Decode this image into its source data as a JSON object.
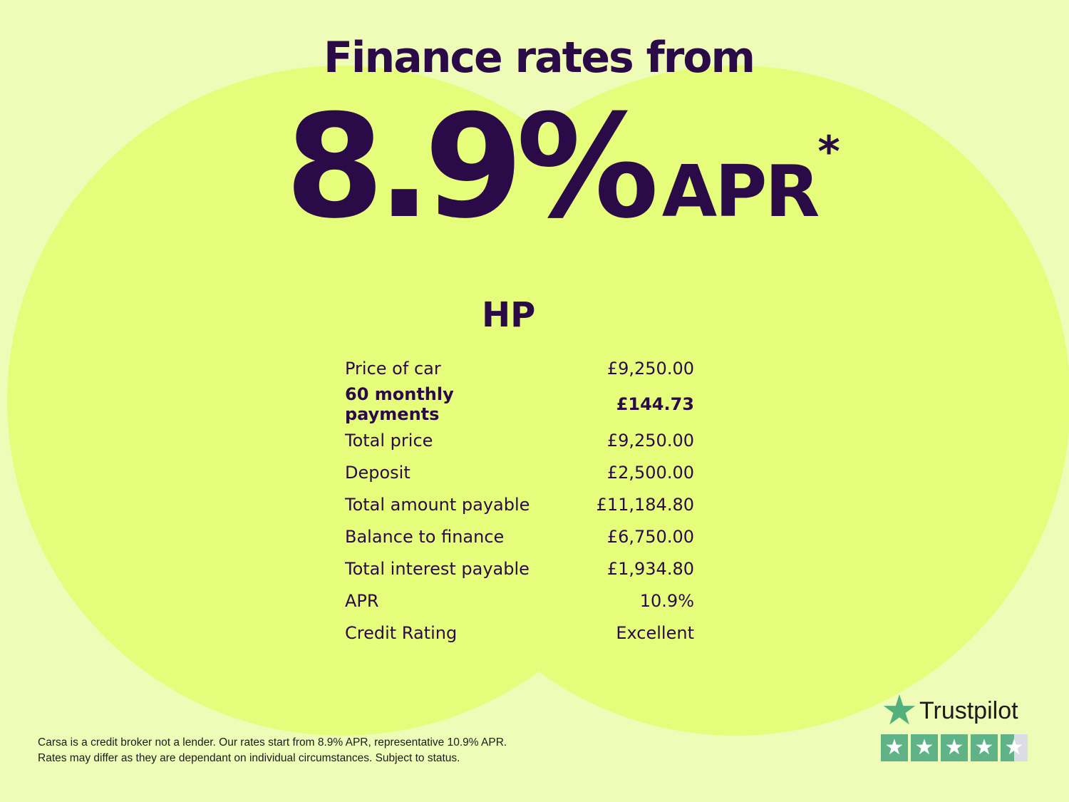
{
  "headline": {
    "title": "Finance rates from",
    "rate": "8.9%",
    "apr": "APR",
    "asterisk": "*"
  },
  "table": {
    "heading": "HP",
    "rows": [
      {
        "label": "Price of car",
        "value": "£9,250.00",
        "bold": false
      },
      {
        "label": "60 monthly payments",
        "value": "£144.73",
        "bold": true
      },
      {
        "label": "Total price",
        "value": "£9,250.00",
        "bold": false
      },
      {
        "label": "Deposit",
        "value": "£2,500.00",
        "bold": false
      },
      {
        "label": "Total amount payable",
        "value": "£11,184.80",
        "bold": false
      },
      {
        "label": "Balance to finance",
        "value": "£6,750.00",
        "bold": false
      },
      {
        "label": "Total interest payable",
        "value": "£1,934.80",
        "bold": false
      },
      {
        "label": "APR",
        "value": "10.9%",
        "bold": false
      },
      {
        "label": "Credit Rating",
        "value": "Excellent",
        "bold": false
      }
    ]
  },
  "disclaimer": {
    "line1": "Carsa is a credit broker not a lender. Our rates start from 8.9% APR, representative 10.9% APR.",
    "line2": "Rates may differ as they are dependant on individual circumstances. Subject to status."
  },
  "trustpilot": {
    "name": "Trustpilot",
    "rating": 4.5,
    "max": 5,
    "icon": "star-icon"
  },
  "colors": {
    "background": "#effcb8",
    "circles": "#e6fd7b",
    "text": "#2a0b47",
    "trustpilot_green": "#5fb386"
  }
}
